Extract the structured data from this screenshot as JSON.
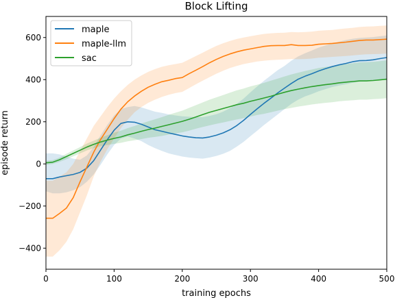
{
  "chart_data": {
    "type": "line",
    "title": "Block Lifting",
    "xlabel": "training epochs",
    "ylabel": "episode return",
    "xlim": [
      0,
      500
    ],
    "ylim": [
      -500,
      700
    ],
    "xticks": [
      0,
      100,
      200,
      300,
      400,
      500
    ],
    "yticks": [
      -400,
      -200,
      0,
      200,
      400,
      600
    ],
    "grid": false,
    "legend_position": "top-left",
    "series": [
      {
        "name": "maple",
        "color": "#1f77b4",
        "x": [
          0,
          10,
          20,
          30,
          40,
          50,
          60,
          70,
          80,
          90,
          100,
          110,
          120,
          130,
          140,
          150,
          160,
          170,
          180,
          190,
          200,
          210,
          220,
          230,
          240,
          250,
          260,
          270,
          280,
          290,
          300,
          310,
          320,
          330,
          340,
          350,
          360,
          370,
          380,
          390,
          400,
          410,
          420,
          430,
          440,
          450,
          460,
          470,
          480,
          490,
          500
        ],
        "y": [
          -70,
          -70,
          -62,
          -56,
          -50,
          -40,
          -20,
          15,
          65,
          115,
          160,
          192,
          200,
          198,
          188,
          175,
          162,
          155,
          147,
          140,
          133,
          128,
          124,
          123,
          128,
          136,
          147,
          162,
          182,
          207,
          235,
          262,
          288,
          312,
          337,
          360,
          382,
          402,
          416,
          428,
          441,
          452,
          462,
          470,
          477,
          485,
          490,
          491,
          494,
          500,
          505
        ],
        "lower": [
          -130,
          -140,
          -140,
          -135,
          -125,
          -110,
          -85,
          -50,
          -5,
          45,
          90,
          120,
          130,
          120,
          108,
          90,
          75,
          62,
          50,
          42,
          35,
          30,
          27,
          25,
          30,
          38,
          48,
          62,
          82,
          105,
          132,
          158,
          185,
          210,
          235,
          260,
          285,
          305,
          320,
          332,
          345,
          355,
          365,
          372,
          378,
          385,
          390,
          392,
          394,
          398,
          400
        ],
        "upper": [
          50,
          50,
          45,
          35,
          25,
          20,
          40,
          80,
          135,
          185,
          230,
          260,
          270,
          275,
          268,
          258,
          248,
          242,
          235,
          230,
          226,
          224,
          222,
          222,
          228,
          236,
          248,
          265,
          285,
          310,
          340,
          368,
          395,
          420,
          445,
          465,
          490,
          510,
          525,
          538,
          552,
          562,
          572,
          580,
          588,
          594,
          598,
          600,
          602,
          606,
          610
        ]
      },
      {
        "name": "maple-llm",
        "color": "#ff7f0e",
        "x": [
          0,
          10,
          20,
          30,
          40,
          50,
          60,
          70,
          80,
          90,
          100,
          110,
          120,
          130,
          140,
          150,
          160,
          170,
          180,
          190,
          200,
          210,
          220,
          230,
          240,
          250,
          260,
          270,
          280,
          290,
          300,
          310,
          320,
          330,
          340,
          350,
          360,
          370,
          380,
          390,
          400,
          410,
          420,
          430,
          440,
          450,
          460,
          470,
          480,
          490,
          500
        ],
        "y": [
          -258,
          -258,
          -235,
          -210,
          -160,
          -85,
          -15,
          55,
          115,
          165,
          215,
          260,
          295,
          322,
          345,
          364,
          378,
          390,
          397,
          405,
          410,
          428,
          445,
          462,
          480,
          496,
          510,
          522,
          532,
          540,
          546,
          552,
          558,
          561,
          562,
          562,
          566,
          562,
          562,
          563,
          568,
          570,
          572,
          575,
          578,
          582,
          586,
          588,
          588,
          590,
          592
        ],
        "lower": [
          -440,
          -440,
          -410,
          -370,
          -310,
          -230,
          -150,
          -60,
          10,
          70,
          120,
          170,
          210,
          245,
          270,
          290,
          305,
          318,
          328,
          336,
          342,
          360,
          378,
          395,
          412,
          428,
          442,
          455,
          465,
          474,
          480,
          486,
          490,
          493,
          494,
          496,
          498,
          497,
          498,
          500,
          504,
          506,
          508,
          510,
          512,
          515,
          518,
          520,
          521,
          522,
          524
        ],
        "upper": [
          -80,
          -80,
          -60,
          -40,
          0,
          60,
          120,
          180,
          225,
          270,
          310,
          345,
          375,
          400,
          420,
          437,
          450,
          461,
          468,
          474,
          480,
          496,
          512,
          528,
          545,
          560,
          573,
          584,
          593,
          600,
          606,
          612,
          617,
          620,
          622,
          623,
          626,
          625,
          626,
          628,
          632,
          634,
          636,
          640,
          643,
          646,
          650,
          652,
          653,
          655,
          657
        ]
      },
      {
        "name": "sac",
        "color": "#2ca02c",
        "x": [
          0,
          10,
          20,
          30,
          40,
          50,
          60,
          70,
          80,
          90,
          100,
          110,
          120,
          130,
          140,
          150,
          160,
          170,
          180,
          190,
          200,
          210,
          220,
          230,
          240,
          250,
          260,
          270,
          280,
          290,
          300,
          310,
          320,
          330,
          340,
          350,
          360,
          370,
          380,
          390,
          400,
          410,
          420,
          430,
          440,
          450,
          460,
          470,
          480,
          490,
          500
        ],
        "y": [
          5,
          8,
          20,
          35,
          50,
          65,
          80,
          93,
          104,
          113,
          121,
          128,
          138,
          146,
          155,
          163,
          170,
          178,
          186,
          194,
          202,
          212,
          223,
          234,
          245,
          254,
          263,
          272,
          281,
          288,
          297,
          305,
          313,
          321,
          331,
          340,
          348,
          355,
          361,
          367,
          372,
          376,
          380,
          385,
          388,
          391,
          394,
          394,
          396,
          399,
          402
        ],
        "lower": [
          -5,
          0,
          10,
          22,
          36,
          50,
          64,
          75,
          84,
          90,
          95,
          100,
          107,
          112,
          118,
          124,
          128,
          133,
          139,
          145,
          150,
          158,
          167,
          175,
          183,
          190,
          197,
          204,
          211,
          217,
          225,
          232,
          238,
          245,
          253,
          260,
          266,
          272,
          277,
          282,
          286,
          290,
          293,
          297,
          300,
          302,
          305,
          305,
          307,
          309,
          312
        ],
        "upper": [
          15,
          18,
          30,
          48,
          64,
          80,
          96,
          110,
          124,
          136,
          148,
          158,
          170,
          180,
          192,
          202,
          212,
          222,
          233,
          243,
          253,
          266,
          279,
          292,
          305,
          316,
          327,
          338,
          349,
          358,
          368,
          376,
          385,
          395,
          405,
          415,
          425,
          433,
          441,
          448,
          455,
          460,
          465,
          470,
          474,
          478,
          482,
          483,
          485,
          488,
          492
        ]
      }
    ]
  }
}
